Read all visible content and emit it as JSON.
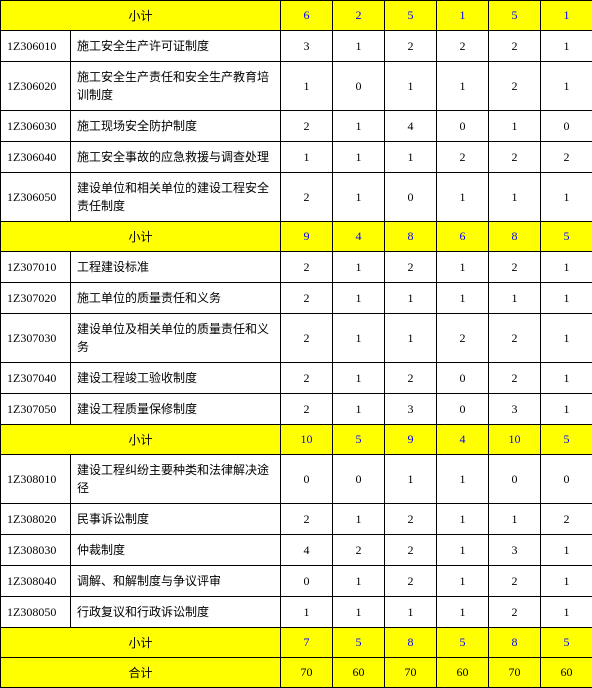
{
  "labels": {
    "subtotal": "小计",
    "total": "合计"
  },
  "sections": [
    {
      "subtotal_values": [
        "6",
        "2",
        "5",
        "1",
        "5",
        "1"
      ],
      "rows": []
    },
    {
      "subtotal_values": [
        "9",
        "4",
        "8",
        "6",
        "8",
        "5"
      ],
      "rows": [
        {
          "code": "1Z306010",
          "desc": "施工安全生产许可证制度",
          "v": [
            "3",
            "1",
            "2",
            "2",
            "2",
            "1"
          ]
        },
        {
          "code": "1Z306020",
          "desc": "施工安全生产责任和安全生产教育培训制度",
          "v": [
            "1",
            "0",
            "1",
            "1",
            "2",
            "1"
          ]
        },
        {
          "code": "1Z306030",
          "desc": "施工现场安全防护制度",
          "v": [
            "2",
            "1",
            "4",
            "0",
            "1",
            "0"
          ]
        },
        {
          "code": "1Z306040",
          "desc": "施工安全事故的应急救援与调查处理",
          "v": [
            "1",
            "1",
            "1",
            "2",
            "2",
            "2"
          ]
        },
        {
          "code": "1Z306050",
          "desc": "建设单位和相关单位的建设工程安全责任制度",
          "v": [
            "2",
            "1",
            "0",
            "1",
            "1",
            "1"
          ]
        }
      ]
    },
    {
      "subtotal_values": [
        "10",
        "5",
        "9",
        "4",
        "10",
        "5"
      ],
      "rows": [
        {
          "code": "1Z307010",
          "desc": "工程建设标准",
          "v": [
            "2",
            "1",
            "2",
            "1",
            "2",
            "1"
          ]
        },
        {
          "code": "1Z307020",
          "desc": "施工单位的质量责任和义务",
          "v": [
            "2",
            "1",
            "1",
            "1",
            "1",
            "1"
          ]
        },
        {
          "code": "1Z307030",
          "desc": "建设单位及相关单位的质量责任和义务",
          "v": [
            "2",
            "1",
            "1",
            "2",
            "2",
            "1"
          ]
        },
        {
          "code": "1Z307040",
          "desc": "建设工程竣工验收制度",
          "v": [
            "2",
            "1",
            "2",
            "0",
            "2",
            "1"
          ]
        },
        {
          "code": "1Z307050",
          "desc": "建设工程质量保修制度",
          "v": [
            "2",
            "1",
            "3",
            "0",
            "3",
            "1"
          ]
        }
      ]
    },
    {
      "subtotal_values": [
        "7",
        "5",
        "8",
        "5",
        "8",
        "5"
      ],
      "rows": [
        {
          "code": "1Z308010",
          "desc": "建设工程纠纷主要种类和法律解决途径",
          "v": [
            "0",
            "0",
            "1",
            "1",
            "0",
            "0"
          ]
        },
        {
          "code": "1Z308020",
          "desc": "民事诉讼制度",
          "v": [
            "2",
            "1",
            "2",
            "1",
            "1",
            "2"
          ]
        },
        {
          "code": "1Z308030",
          "desc": "仲裁制度",
          "v": [
            "4",
            "2",
            "2",
            "1",
            "3",
            "1"
          ]
        },
        {
          "code": "1Z308040",
          "desc": "调解、和解制度与争议评审",
          "v": [
            "0",
            "1",
            "2",
            "1",
            "2",
            "1"
          ]
        },
        {
          "code": "1Z308050",
          "desc": "行政复议和行政诉讼制度",
          "v": [
            "1",
            "1",
            "1",
            "1",
            "2",
            "1"
          ]
        }
      ]
    }
  ],
  "total_values": [
    "70",
    "60",
    "70",
    "60",
    "70",
    "60"
  ]
}
